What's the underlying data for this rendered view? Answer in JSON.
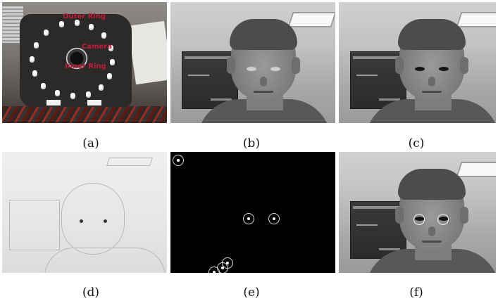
{
  "figure": {
    "panels": [
      {
        "id": "a",
        "caption": "(a)",
        "labels": {
          "outer": "Outer Ring",
          "camera": "Camera",
          "inner": "Inner Ring"
        }
      },
      {
        "id": "b",
        "caption": "(b)"
      },
      {
        "id": "c",
        "caption": "(c)"
      },
      {
        "id": "d",
        "caption": "(d)"
      },
      {
        "id": "e",
        "caption": "(e)"
      },
      {
        "id": "f",
        "caption": "(f)"
      }
    ]
  }
}
